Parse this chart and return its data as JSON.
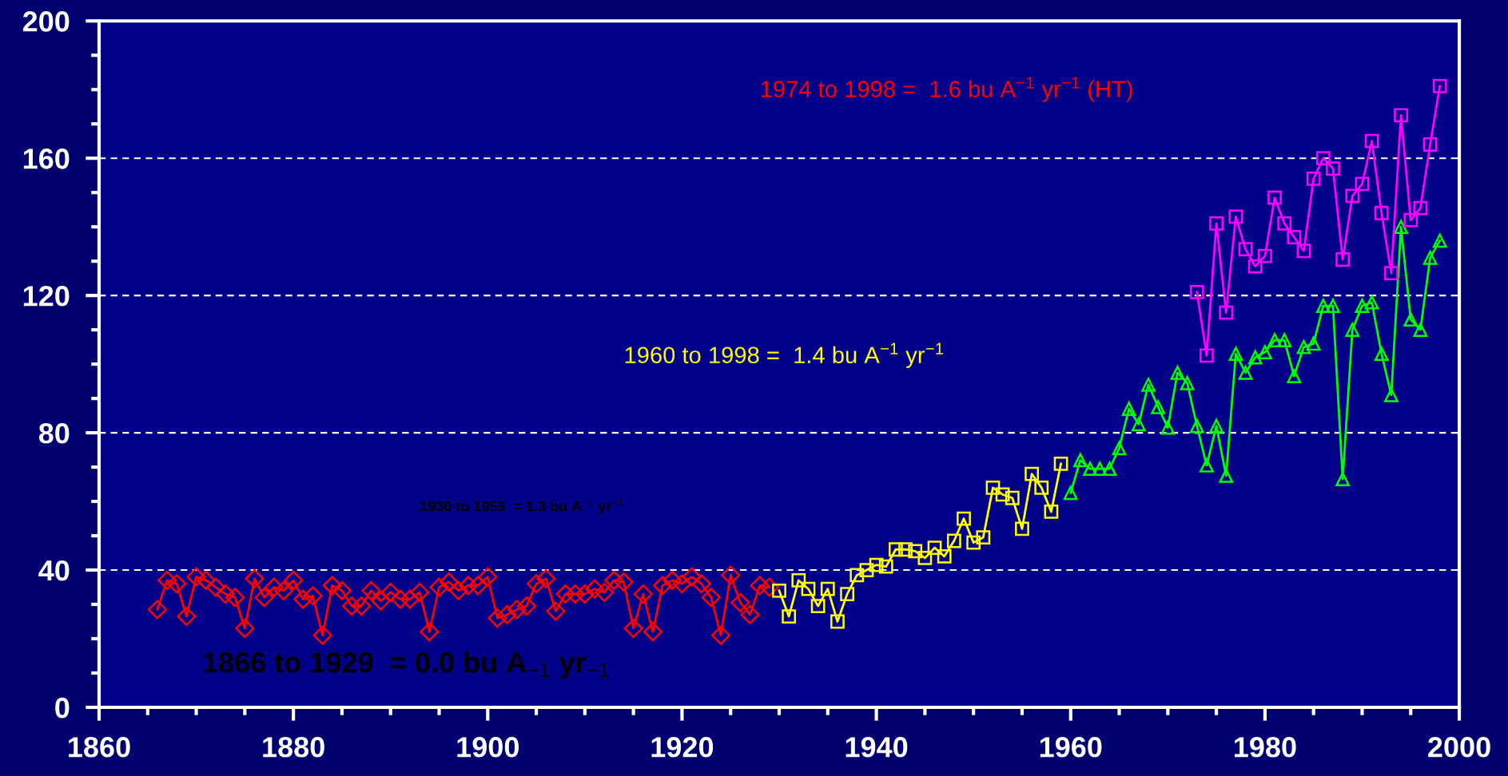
{
  "chart_data": {
    "type": "line",
    "xlim": [
      1860,
      2000
    ],
    "xticks": [
      1860,
      {
        "value": 1865,
        "label": null
      },
      {
        "value": 1870,
        "label": null
      },
      {
        "value": 1875,
        "label": null
      },
      1880,
      {
        "value": 1885,
        "label": null
      },
      {
        "value": 1890,
        "label": null
      },
      {
        "value": 1895,
        "label": null
      },
      1900,
      {
        "value": 1905,
        "label": null
      },
      {
        "value": 1910,
        "label": null
      },
      {
        "value": 1915,
        "label": null
      },
      1920,
      {
        "value": 1925,
        "label": null
      },
      {
        "value": 1930,
        "label": null
      },
      {
        "value": 1935,
        "label": null
      },
      1940,
      {
        "value": 1945,
        "label": null
      },
      {
        "value": 1950,
        "label": null
      },
      {
        "value": 1955,
        "label": null
      },
      1960,
      {
        "value": 1965,
        "label": null
      },
      {
        "value": 1970,
        "label": null
      },
      {
        "value": 1975,
        "label": null
      },
      1980,
      {
        "value": 1985,
        "label": null
      },
      {
        "value": 1990,
        "label": null
      },
      {
        "value": 1995,
        "label": null
      },
      2000
    ],
    "ylim": [
      0,
      200
    ],
    "yticks": [
      0,
      {
        "value": 10,
        "label": null
      },
      {
        "value": 20,
        "label": null
      },
      {
        "value": 30,
        "label": null
      },
      40,
      {
        "value": 50,
        "label": null
      },
      {
        "value": 60,
        "label": null
      },
      {
        "value": 70,
        "label": null
      },
      80,
      {
        "value": 90,
        "label": null
      },
      {
        "value": 100,
        "label": null
      },
      {
        "value": 110,
        "label": null
      },
      120,
      {
        "value": 130,
        "label": null
      },
      {
        "value": 140,
        "label": null
      },
      {
        "value": 150,
        "label": null
      },
      160,
      {
        "value": 170,
        "label": null
      },
      {
        "value": 180,
        "label": null
      },
      {
        "value": 190,
        "label": null
      },
      200
    ],
    "grid": "y",
    "line_style": "solid",
    "series": [
      {
        "color": "#ff0000",
        "marker": "diamond",
        "x": [
          1866,
          1867,
          1868,
          1869,
          1870,
          1871,
          1872,
          1873,
          1874,
          1875,
          1876,
          1877,
          1878,
          1879,
          1880,
          1881,
          1882,
          1883,
          1884,
          1885,
          1886,
          1887,
          1888,
          1889,
          1890,
          1891,
          1892,
          1893,
          1894,
          1895,
          1896,
          1897,
          1898,
          1899,
          1900,
          1901,
          1902,
          1903,
          1904,
          1905,
          1906,
          1907,
          1908,
          1909,
          1910,
          1911,
          1912,
          1913,
          1914,
          1915,
          1916,
          1917,
          1918,
          1919,
          1920,
          1921,
          1922,
          1923,
          1924,
          1925,
          1926,
          1927,
          1928,
          1929
        ],
        "values": [
          28.5,
          37,
          36,
          26.5,
          38,
          37,
          35,
          33,
          32,
          23,
          37.5,
          32,
          35,
          34,
          37,
          31.5,
          32.5,
          21,
          35.5,
          34,
          29.5,
          29.5,
          34,
          31,
          33.5,
          31.5,
          31.5,
          33.5,
          22,
          35,
          36.5,
          34,
          35.5,
          35.5,
          38,
          26,
          27,
          28.5,
          29.5,
          36,
          37.5,
          28,
          33,
          33,
          33,
          34.5,
          33.5,
          37,
          36.5,
          23,
          33,
          22,
          35.5,
          37,
          36,
          38,
          36,
          32,
          21,
          38.5,
          30.5,
          27,
          35.5,
          35
        ]
      },
      {
        "color": "#ffff00",
        "marker": "square",
        "x": [
          1930,
          1931,
          1932,
          1933,
          1934,
          1935,
          1936,
          1937,
          1938,
          1939,
          1940,
          1941,
          1942,
          1943,
          1944,
          1945,
          1946,
          1947,
          1948,
          1949,
          1950,
          1951,
          1952,
          1953,
          1954,
          1955,
          1956,
          1957,
          1958,
          1959
        ],
        "values": [
          34,
          26.5,
          37,
          34.5,
          29.5,
          34.5,
          25,
          33,
          38.5,
          40,
          41.5,
          41,
          46,
          46,
          45.5,
          43.5,
          46.5,
          44,
          48.5,
          55,
          48,
          49.5,
          64,
          62,
          61,
          52,
          68,
          64,
          57,
          71
        ]
      },
      {
        "color": "#00ff00",
        "marker": "triangle",
        "x": [
          1960,
          1961,
          1962,
          1963,
          1964,
          1965,
          1966,
          1967,
          1968,
          1969,
          1970,
          1971,
          1972,
          1973,
          1974,
          1975,
          1976,
          1977,
          1978,
          1979,
          1980,
          1981,
          1982,
          1983,
          1984,
          1985,
          1986,
          1987,
          1988,
          1989,
          1990,
          1991,
          1992,
          1993,
          1994,
          1995,
          1996,
          1997,
          1998
        ],
        "values": [
          62.5,
          72,
          69.5,
          69.5,
          69.5,
          75.5,
          87,
          82.5,
          94,
          87.5,
          81.5,
          97.5,
          94.5,
          82,
          70.5,
          82,
          67.5,
          103,
          97.5,
          102,
          103.5,
          107,
          107,
          96.5,
          105,
          106,
          117,
          117,
          66.5,
          110,
          117,
          118,
          103,
          91,
          140,
          113,
          110,
          131,
          136
        ]
      },
      {
        "color": "#ff00ff",
        "marker": "square",
        "x": [
          1973,
          1974,
          1975,
          1976,
          1977,
          1978,
          1979,
          1980,
          1981,
          1982,
          1983,
          1984,
          1985,
          1986,
          1987,
          1988,
          1989,
          1990,
          1991,
          1992,
          1993,
          1994,
          1995,
          1996,
          1997,
          1998
        ],
        "values": [
          121,
          102.5,
          141,
          115,
          143,
          133.5,
          128.5,
          131.5,
          148.5,
          141,
          137,
          133,
          154,
          160,
          157,
          130.5,
          149,
          152.5,
          165,
          144,
          126.5,
          172.5,
          142,
          145.5,
          164,
          181
        ]
      }
    ],
    "annotations": [
      "1974 to 1998 =  1.6 bu A$^{−1}$ yr$^{−1}$ (HT)",
      "1960 to 1998 =  1.4 bu A$^{−1}$ yr$^{−1}$",
      "1930 to 1959  = 1.3 bu A$^{−1}$ yr$^{−1}$",
      "1866 to 1929  = 0.0 bu A$_{−1}$ yr$_{−1}$"
    ]
  }
}
